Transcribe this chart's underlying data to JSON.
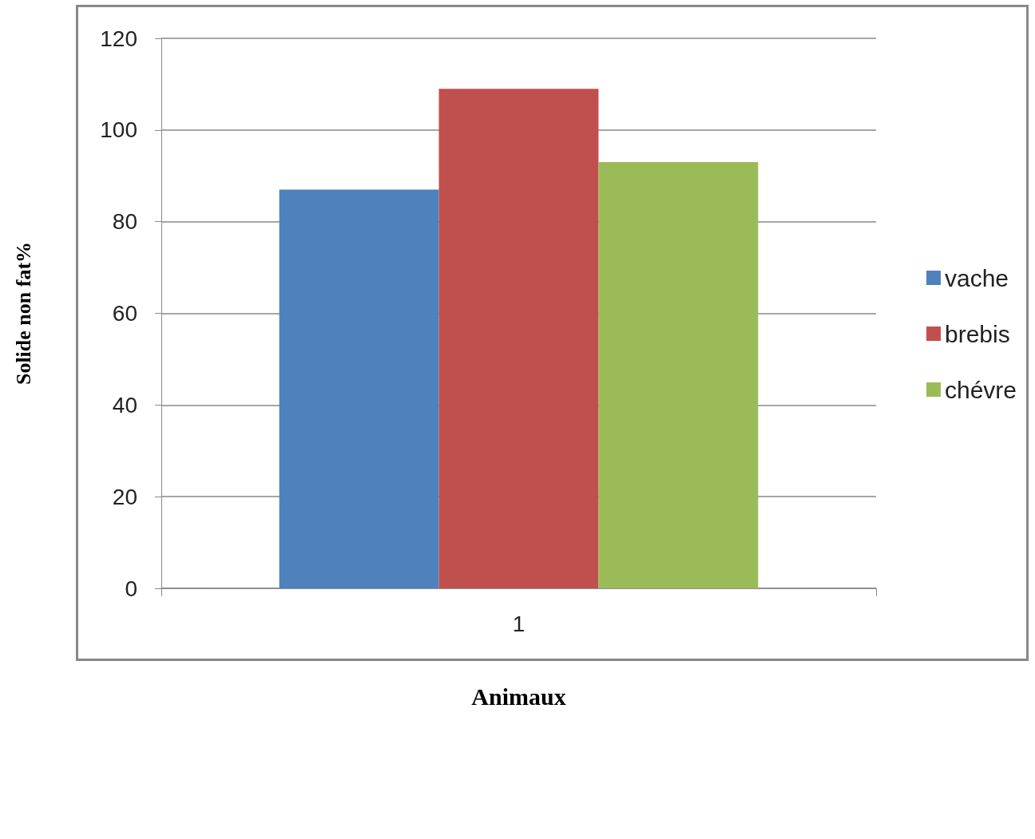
{
  "chart_data": {
    "type": "bar",
    "xlabel": "Animaux",
    "ylabel": "Solide non fat%",
    "categories": [
      "1"
    ],
    "series": [
      {
        "name": "vache",
        "color": "#4f81bd",
        "values": [
          87
        ]
      },
      {
        "name": "brebis",
        "color": "#c0504d",
        "values": [
          109
        ]
      },
      {
        "name": "chévre",
        "color": "#9bbb59",
        "values": [
          93
        ]
      }
    ],
    "ylim": [
      0,
      120
    ],
    "yticks": [
      0,
      20,
      40,
      60,
      80,
      100,
      120
    ],
    "grid": "y",
    "legend": "right"
  }
}
